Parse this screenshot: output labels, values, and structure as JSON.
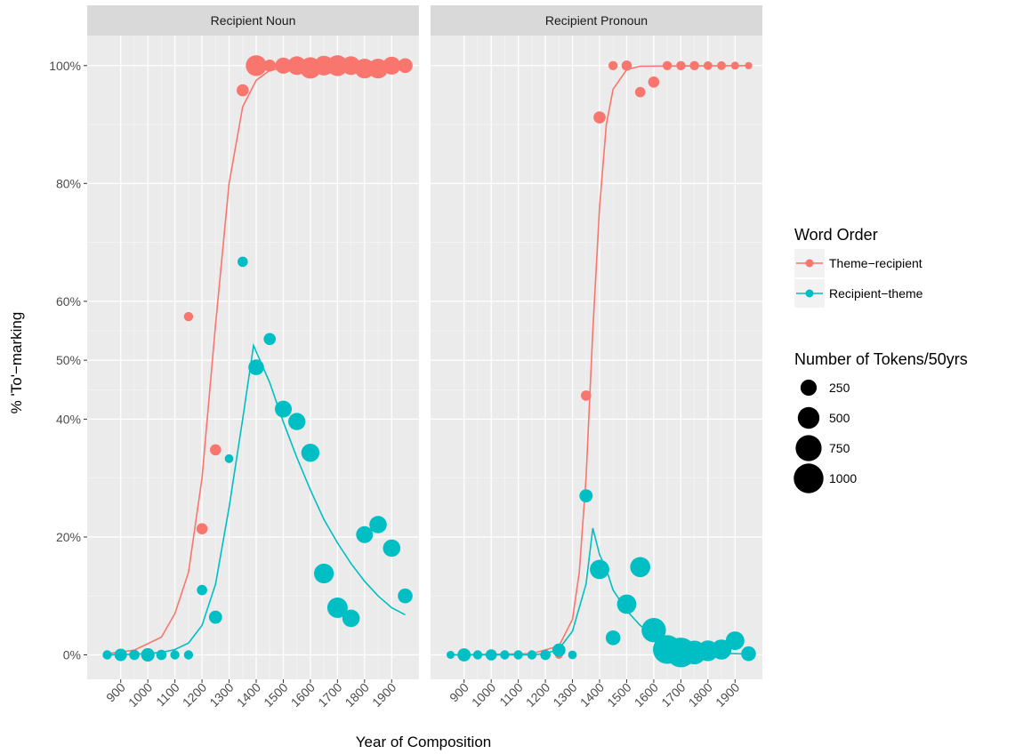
{
  "chart_data": {
    "type": "scatter",
    "xlabel": "Year of Composition",
    "ylabel": "% 'To'−marking",
    "xlim": [
      825,
      1950
    ],
    "ylim": [
      -4,
      105
    ],
    "x_ticks": [
      900,
      1000,
      1100,
      1200,
      1300,
      1400,
      1500,
      1600,
      1700,
      1800,
      1900
    ],
    "y_ticks": [
      0,
      20,
      40,
      50,
      60,
      80,
      100
    ],
    "y_tick_labels": [
      "0%",
      "20%",
      "40%",
      "50%",
      "60%",
      "80%",
      "100%"
    ],
    "grid": true,
    "facets": [
      {
        "label": "Recipient Noun",
        "series": [
          {
            "name": "Theme−recipient",
            "color": "#F8766D",
            "points": [
              {
                "x": 850,
                "y": 0,
                "n": 40
              },
              {
                "x": 900,
                "y": 0,
                "n": 60
              },
              {
                "x": 950,
                "y": 0,
                "n": 40
              },
              {
                "x": 1000,
                "y": 0,
                "n": 50
              },
              {
                "x": 1050,
                "y": 0,
                "n": 40
              },
              {
                "x": 1100,
                "y": 0,
                "n": 30
              },
              {
                "x": 1150,
                "y": 57.4,
                "n": 60
              },
              {
                "x": 1200,
                "y": 21.4,
                "n": 100
              },
              {
                "x": 1250,
                "y": 34.8,
                "n": 100
              },
              {
                "x": 1350,
                "y": 95.8,
                "n": 120
              },
              {
                "x": 1400,
                "y": 100,
                "n": 450
              },
              {
                "x": 1450,
                "y": 100,
                "n": 120
              },
              {
                "x": 1500,
                "y": 100,
                "n": 250
              },
              {
                "x": 1550,
                "y": 100,
                "n": 350
              },
              {
                "x": 1600,
                "y": 99.6,
                "n": 480
              },
              {
                "x": 1650,
                "y": 100,
                "n": 400
              },
              {
                "x": 1700,
                "y": 100,
                "n": 450
              },
              {
                "x": 1750,
                "y": 100,
                "n": 350
              },
              {
                "x": 1800,
                "y": 99.5,
                "n": 400
              },
              {
                "x": 1850,
                "y": 99.5,
                "n": 400
              },
              {
                "x": 1900,
                "y": 100,
                "n": 320
              },
              {
                "x": 1950,
                "y": 100,
                "n": 200
              }
            ],
            "fit": [
              [
                850,
                0.2
              ],
              [
                950,
                0.8
              ],
              [
                1050,
                3
              ],
              [
                1100,
                7
              ],
              [
                1150,
                14
              ],
              [
                1200,
                30
              ],
              [
                1250,
                56
              ],
              [
                1300,
                80
              ],
              [
                1350,
                93
              ],
              [
                1400,
                97.5
              ],
              [
                1450,
                99.2
              ],
              [
                1550,
                99.9
              ],
              [
                1950,
                100
              ]
            ]
          },
          {
            "name": "Recipient−theme",
            "color": "#00BFC4",
            "points": [
              {
                "x": 850,
                "y": 0,
                "n": 60
              },
              {
                "x": 900,
                "y": 0,
                "n": 130
              },
              {
                "x": 950,
                "y": 0,
                "n": 80
              },
              {
                "x": 1000,
                "y": 0,
                "n": 160
              },
              {
                "x": 1050,
                "y": 0,
                "n": 80
              },
              {
                "x": 1100,
                "y": 0,
                "n": 60
              },
              {
                "x": 1150,
                "y": 0,
                "n": 60
              },
              {
                "x": 1200,
                "y": 11,
                "n": 80
              },
              {
                "x": 1250,
                "y": 6.4,
                "n": 150
              },
              {
                "x": 1300,
                "y": 33.3,
                "n": 50
              },
              {
                "x": 1350,
                "y": 66.7,
                "n": 80
              },
              {
                "x": 1400,
                "y": 48.8,
                "n": 230
              },
              {
                "x": 1450,
                "y": 53.6,
                "n": 120
              },
              {
                "x": 1500,
                "y": 41.7,
                "n": 280
              },
              {
                "x": 1550,
                "y": 39.6,
                "n": 290
              },
              {
                "x": 1600,
                "y": 34.3,
                "n": 330
              },
              {
                "x": 1650,
                "y": 13.8,
                "n": 400
              },
              {
                "x": 1700,
                "y": 8,
                "n": 430
              },
              {
                "x": 1750,
                "y": 6.2,
                "n": 300
              },
              {
                "x": 1800,
                "y": 20.4,
                "n": 280
              },
              {
                "x": 1850,
                "y": 22.1,
                "n": 300
              },
              {
                "x": 1900,
                "y": 18.1,
                "n": 300
              },
              {
                "x": 1950,
                "y": 10,
                "n": 200
              }
            ],
            "fit": [
              [
                850,
                0
              ],
              [
                950,
                0.1
              ],
              [
                1050,
                0.4
              ],
              [
                1100,
                0.9
              ],
              [
                1150,
                2
              ],
              [
                1200,
                5
              ],
              [
                1250,
                12
              ],
              [
                1300,
                25
              ],
              [
                1350,
                40
              ],
              [
                1390,
                52.5
              ],
              [
                1450,
                46.2
              ],
              [
                1500,
                39.5
              ],
              [
                1550,
                33.5
              ],
              [
                1600,
                28
              ],
              [
                1650,
                23
              ],
              [
                1700,
                19
              ],
              [
                1750,
                15.5
              ],
              [
                1800,
                12.5
              ],
              [
                1850,
                10
              ],
              [
                1900,
                8
              ],
              [
                1950,
                6.8
              ]
            ]
          }
        ]
      },
      {
        "label": "Recipient Pronoun",
        "series": [
          {
            "name": "Theme−recipient",
            "color": "#F8766D",
            "points": [
              {
                "x": 850,
                "y": 0,
                "n": 30
              },
              {
                "x": 900,
                "y": 0,
                "n": 40
              },
              {
                "x": 950,
                "y": 0,
                "n": 40
              },
              {
                "x": 1000,
                "y": 0,
                "n": 40
              },
              {
                "x": 1050,
                "y": 0,
                "n": 40
              },
              {
                "x": 1100,
                "y": 0,
                "n": 40
              },
              {
                "x": 1150,
                "y": 0,
                "n": 30
              },
              {
                "x": 1200,
                "y": 0,
                "n": 40
              },
              {
                "x": 1250,
                "y": 0,
                "n": 40
              },
              {
                "x": 1300,
                "y": 0,
                "n": 30
              },
              {
                "x": 1350,
                "y": 44,
                "n": 80
              },
              {
                "x": 1400,
                "y": 91.2,
                "n": 120
              },
              {
                "x": 1450,
                "y": 100,
                "n": 60
              },
              {
                "x": 1500,
                "y": 100,
                "n": 80
              },
              {
                "x": 1550,
                "y": 95.5,
                "n": 80
              },
              {
                "x": 1600,
                "y": 97.2,
                "n": 100
              },
              {
                "x": 1650,
                "y": 100,
                "n": 60
              },
              {
                "x": 1700,
                "y": 100,
                "n": 60
              },
              {
                "x": 1750,
                "y": 100,
                "n": 60
              },
              {
                "x": 1800,
                "y": 100,
                "n": 50
              },
              {
                "x": 1850,
                "y": 100,
                "n": 50
              },
              {
                "x": 1900,
                "y": 100,
                "n": 40
              },
              {
                "x": 1950,
                "y": 100,
                "n": 30
              }
            ],
            "fit": [
              [
                850,
                0
              ],
              [
                1150,
                0.2
              ],
              [
                1250,
                1.5
              ],
              [
                1300,
                6
              ],
              [
                1325,
                14
              ],
              [
                1350,
                30
              ],
              [
                1375,
                55
              ],
              [
                1400,
                76
              ],
              [
                1425,
                90
              ],
              [
                1450,
                96
              ],
              [
                1500,
                99.3
              ],
              [
                1550,
                99.9
              ],
              [
                1950,
                100
              ]
            ]
          },
          {
            "name": "Recipient−theme",
            "color": "#00BFC4",
            "points": [
              {
                "x": 850,
                "y": 0,
                "n": 40
              },
              {
                "x": 900,
                "y": 0,
                "n": 150
              },
              {
                "x": 950,
                "y": 0,
                "n": 60
              },
              {
                "x": 1000,
                "y": 0,
                "n": 100
              },
              {
                "x": 1050,
                "y": 0,
                "n": 60
              },
              {
                "x": 1100,
                "y": 0,
                "n": 60
              },
              {
                "x": 1150,
                "y": 0,
                "n": 60
              },
              {
                "x": 1200,
                "y": 0,
                "n": 80
              },
              {
                "x": 1250,
                "y": 0.8,
                "n": 150
              },
              {
                "x": 1300,
                "y": 0,
                "n": 50
              },
              {
                "x": 1350,
                "y": 27,
                "n": 150
              },
              {
                "x": 1400,
                "y": 14.5,
                "n": 380
              },
              {
                "x": 1450,
                "y": 2.9,
                "n": 200
              },
              {
                "x": 1500,
                "y": 8.6,
                "n": 380
              },
              {
                "x": 1550,
                "y": 14.9,
                "n": 420
              },
              {
                "x": 1600,
                "y": 4.2,
                "n": 650
              },
              {
                "x": 1650,
                "y": 0.9,
                "n": 920
              },
              {
                "x": 1700,
                "y": 0.4,
                "n": 1000
              },
              {
                "x": 1750,
                "y": 0.4,
                "n": 600
              },
              {
                "x": 1800,
                "y": 0.7,
                "n": 450
              },
              {
                "x": 1850,
                "y": 0.9,
                "n": 420
              },
              {
                "x": 1900,
                "y": 2.4,
                "n": 350
              },
              {
                "x": 1950,
                "y": 0.2,
                "n": 200
              }
            ],
            "fit": [
              [
                850,
                0
              ],
              [
                1150,
                0
              ],
              [
                1200,
                0.2
              ],
              [
                1250,
                1
              ],
              [
                1300,
                4
              ],
              [
                1350,
                12
              ],
              [
                1375,
                21.5
              ],
              [
                1400,
                17
              ],
              [
                1425,
                14.5
              ],
              [
                1450,
                11
              ],
              [
                1500,
                7.5
              ],
              [
                1550,
                5
              ],
              [
                1600,
                3.2
              ],
              [
                1650,
                2
              ],
              [
                1700,
                1.3
              ],
              [
                1750,
                0.8
              ],
              [
                1800,
                0.5
              ],
              [
                1850,
                0.3
              ],
              [
                1900,
                0.2
              ],
              [
                1950,
                0.1
              ]
            ]
          }
        ]
      }
    ],
    "legend": {
      "position": "right",
      "color_title": "Word Order",
      "color_entries": [
        {
          "label": "Theme−recipient",
          "color": "#F8766D"
        },
        {
          "label": "Recipient−theme",
          "color": "#00BFC4"
        }
      ],
      "size_title": "Number of Tokens/50yrs",
      "size_entries": [
        {
          "label": "250",
          "value": 250
        },
        {
          "label": "500",
          "value": 500
        },
        {
          "label": "750",
          "value": 750
        },
        {
          "label": "1000",
          "value": 1000
        }
      ]
    },
    "colors": {
      "panel_background": "#EBEBEB",
      "strip_background": "#D9D9D9",
      "grid_major": "#FFFFFF"
    }
  }
}
